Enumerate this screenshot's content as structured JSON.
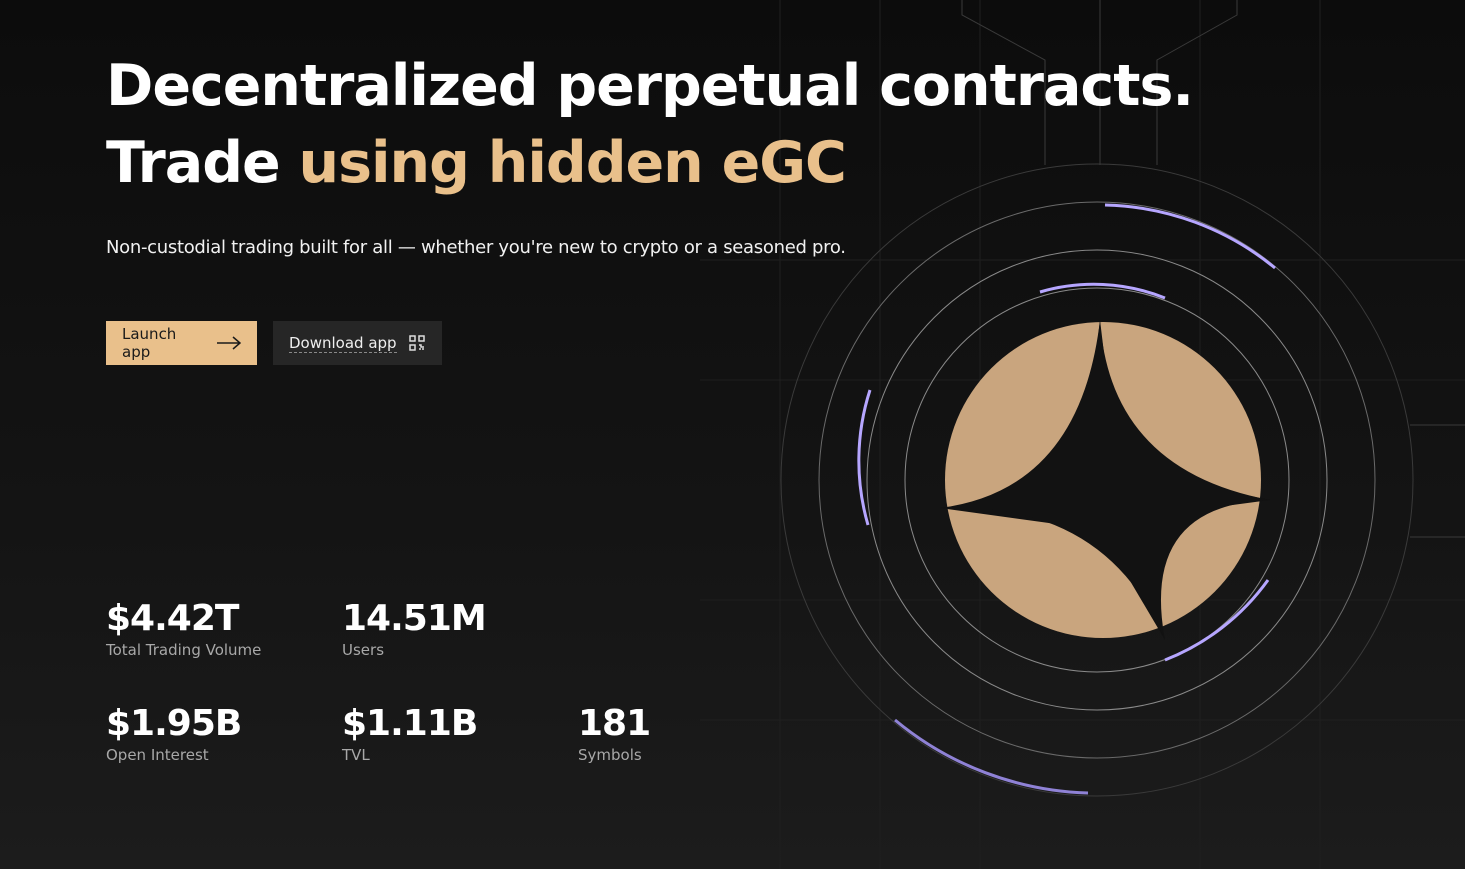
{
  "hero": {
    "title_line1": "Decentralized perpetual contracts.",
    "title_line2_plain": "Trade",
    "title_line2_accent": "using hidden eGC",
    "subtitle": "Non-custodial trading built for all — whether you're new to crypto or a seasoned pro.",
    "buttons": {
      "launch": "Launch app",
      "download": "Download app"
    }
  },
  "stats": [
    {
      "value": "$4.42T",
      "label": "Total Trading Volume"
    },
    {
      "value": "14.51M",
      "label": "Users"
    },
    {
      "value": "$1.95B",
      "label": "Open Interest"
    },
    {
      "value": "$1.11B",
      "label": "TVL"
    },
    {
      "value": "181",
      "label": "Symbols"
    }
  ]
}
